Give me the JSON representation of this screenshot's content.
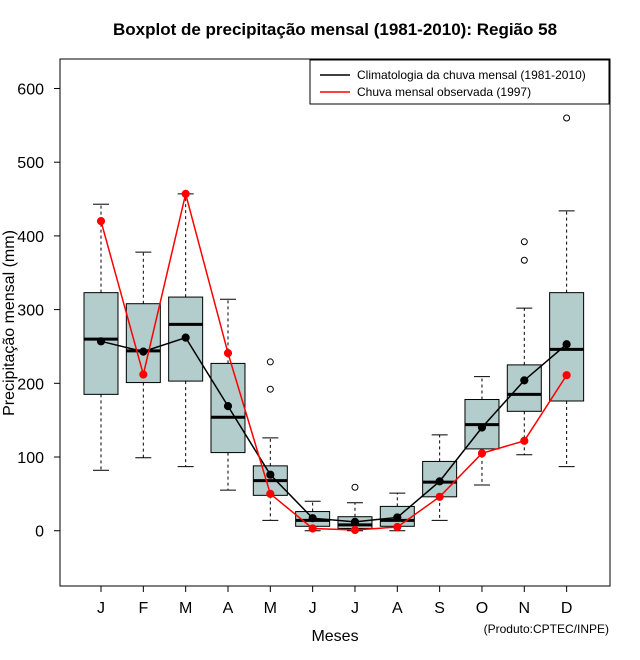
{
  "chart_data": {
    "type": "boxplot",
    "title": "Boxplot de precipitação mensal (1981-2010): Região 58",
    "xlabel": "Meses",
    "ylabel": "Precipitação mensal (mm)",
    "ylim": [
      -75,
      640
    ],
    "yticks": [
      0,
      100,
      200,
      300,
      400,
      500,
      600
    ],
    "categories": [
      "J",
      "F",
      "M",
      "A",
      "M",
      "J",
      "J",
      "A",
      "S",
      "O",
      "N",
      "D"
    ],
    "boxes": [
      {
        "whisker_low": 82,
        "q1": 185,
        "median": 260,
        "q3": 323,
        "whisker_high": 443,
        "outliers": []
      },
      {
        "whisker_low": 99,
        "q1": 201,
        "median": 244,
        "q3": 308,
        "whisker_high": 378,
        "outliers": []
      },
      {
        "whisker_low": 87,
        "q1": 203,
        "median": 280,
        "q3": 317,
        "whisker_high": 457,
        "outliers": []
      },
      {
        "whisker_low": 55,
        "q1": 106,
        "median": 154,
        "q3": 227,
        "whisker_high": 314,
        "outliers": []
      },
      {
        "whisker_low": 14,
        "q1": 48,
        "median": 68,
        "q3": 88,
        "whisker_high": 126,
        "outliers": [
          192,
          229
        ]
      },
      {
        "whisker_low": 0,
        "q1": 6,
        "median": 14,
        "q3": 26,
        "whisker_high": 40,
        "outliers": []
      },
      {
        "whisker_low": 0,
        "q1": 3,
        "median": 8,
        "q3": 19,
        "whisker_high": 38,
        "outliers": [
          59
        ]
      },
      {
        "whisker_low": 0,
        "q1": 6,
        "median": 14,
        "q3": 33,
        "whisker_high": 51,
        "outliers": []
      },
      {
        "whisker_low": 14,
        "q1": 46,
        "median": 66,
        "q3": 94,
        "whisker_high": 130,
        "outliers": []
      },
      {
        "whisker_low": 62,
        "q1": 111,
        "median": 144,
        "q3": 178,
        "whisker_high": 209,
        "outliers": []
      },
      {
        "whisker_low": 103,
        "q1": 162,
        "median": 185,
        "q3": 225,
        "whisker_high": 302,
        "outliers": [
          367,
          392
        ]
      },
      {
        "whisker_low": 87,
        "q1": 176,
        "median": 246,
        "q3": 323,
        "whisker_high": 434,
        "outliers": [
          560
        ]
      }
    ],
    "series": [
      {
        "name": "Climatologia da chuva mensal (1981-2010)",
        "color": "#000000",
        "values": [
          257,
          243,
          262,
          169,
          76,
          17,
          12,
          18,
          67,
          140,
          204,
          253
        ]
      },
      {
        "name": "Chuva mensal observada (1997)",
        "color": "#ff0000",
        "values": [
          420,
          212,
          457,
          241,
          50,
          3,
          1,
          5,
          46,
          105,
          122,
          211
        ]
      }
    ],
    "legend_position": "top-right",
    "box_fill": "#b3cccc",
    "credit": "(Produto:CPTEC/INPE)"
  }
}
